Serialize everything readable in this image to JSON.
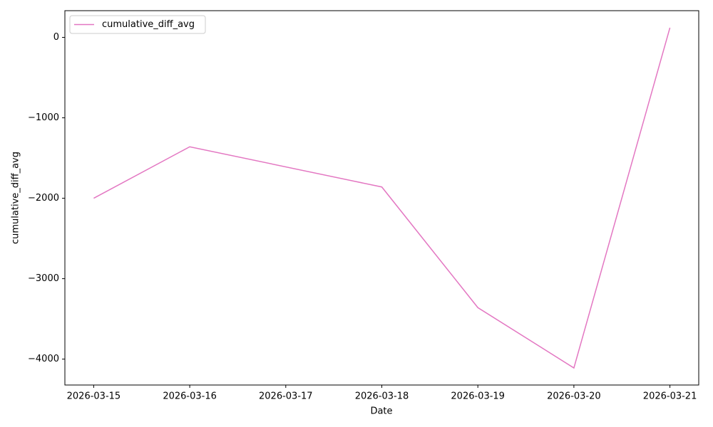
{
  "chart_data": {
    "type": "line",
    "x_label": "Date",
    "y_label": "cumulative_diff_avg",
    "x": [
      "2026-03-15",
      "2026-03-16",
      "2026-03-18",
      "2026-03-19",
      "2026-03-20",
      "2026-03-21"
    ],
    "series": [
      {
        "name": "cumulative_diff_avg",
        "color": "#e377c2",
        "values": [
          -2000,
          -1360,
          -1860,
          -3360,
          -4110,
          120
        ]
      }
    ],
    "xlim": [
      "2026-03-14T16:48",
      "2026-03-21T07:12"
    ],
    "xticks": [
      "2026-03-15",
      "2026-03-16",
      "2026-03-17",
      "2026-03-18",
      "2026-03-19",
      "2026-03-20",
      "2026-03-21"
    ],
    "ylim": [
      -4322,
      332
    ],
    "yticks": [
      {
        "value": -4000,
        "label": "−4000"
      },
      {
        "value": -3000,
        "label": "−3000"
      },
      {
        "value": -2000,
        "label": "−2000"
      },
      {
        "value": -1000,
        "label": "−1000"
      },
      0
    ],
    "legend": "upper left",
    "grid": false
  }
}
